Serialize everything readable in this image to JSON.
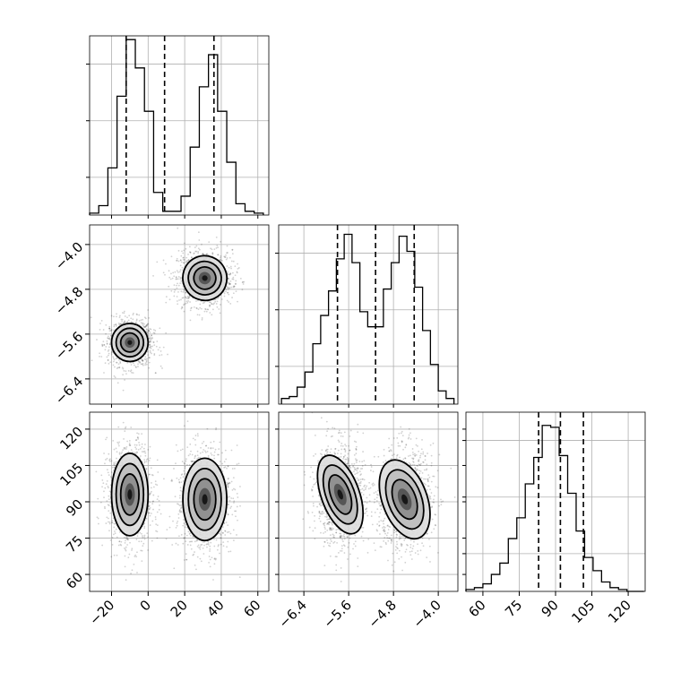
{
  "chart_data": {
    "type": "corner",
    "quantiles_note": "",
    "parameters": [
      {
        "label": "",
        "range": [
          -32,
          66
        ],
        "ticks": [
          -20,
          0,
          20,
          40,
          60
        ],
        "tick_labels": [
          "−20",
          "0",
          "20",
          "40",
          "60"
        ],
        "quantile_lines": [
          -12,
          9,
          36
        ],
        "hist_bins": [
          -32,
          -27,
          -22,
          -17,
          -12,
          -7,
          -2,
          3,
          8,
          13,
          18,
          23,
          28,
          33,
          38,
          43,
          48,
          53,
          58,
          63
        ],
        "hist_counts": [
          0.01,
          0.05,
          0.25,
          0.63,
          0.93,
          0.78,
          0.55,
          0.12,
          0.02,
          0.02,
          0.1,
          0.36,
          0.68,
          0.85,
          0.55,
          0.28,
          0.06,
          0.02,
          0.01
        ]
      },
      {
        "label": "",
        "range": [
          -6.85,
          -3.65
        ],
        "ticks": [
          -6.4,
          -5.6,
          -4.8,
          -4.0
        ],
        "tick_labels": [
          "−6.4",
          "−5.6",
          "−4.8",
          "−4.0"
        ],
        "quantile_lines": [
          -5.8,
          -5.12,
          -4.43
        ],
        "hist_bins": [
          -6.8,
          -6.66,
          -6.52,
          -6.38,
          -6.24,
          -6.1,
          -5.96,
          -5.82,
          -5.68,
          -5.54,
          -5.4,
          -5.26,
          -5.12,
          -4.98,
          -4.84,
          -4.7,
          -4.56,
          -4.42,
          -4.28,
          -4.14,
          -4.0,
          -3.86,
          -3.72
        ],
        "hist_counts": [
          0.03,
          0.04,
          0.09,
          0.17,
          0.32,
          0.47,
          0.6,
          0.77,
          0.9,
          0.75,
          0.49,
          0.41,
          0.41,
          0.61,
          0.75,
          0.89,
          0.81,
          0.62,
          0.39,
          0.21,
          0.07,
          0.03
        ]
      },
      {
        "label": "",
        "range": [
          53,
          127
        ],
        "ticks": [
          60,
          75,
          90,
          105,
          120
        ],
        "tick_labels": [
          "60",
          "75",
          "90",
          "105",
          "120"
        ],
        "quantile_lines": [
          83,
          92,
          101.5
        ],
        "hist_bins": [
          53,
          56.5,
          60,
          63.5,
          67,
          70.5,
          74,
          77.5,
          81,
          84.5,
          88,
          91.5,
          95,
          98.5,
          102,
          105.5,
          109,
          112.5,
          116,
          119.5,
          123,
          126.5
        ],
        "hist_counts": [
          0.01,
          0.02,
          0.04,
          0.09,
          0.15,
          0.28,
          0.39,
          0.57,
          0.71,
          0.88,
          0.87,
          0.72,
          0.52,
          0.32,
          0.18,
          0.11,
          0.05,
          0.02,
          0.01,
          0.0,
          0.0
        ]
      }
    ],
    "modes": [
      {
        "mean": [
          -10,
          -5.75,
          93
        ],
        "sd": [
          5,
          0.17,
          8.5
        ],
        "weight": 0.5
      },
      {
        "mean": [
          31,
          -4.6,
          91
        ],
        "sd": [
          6,
          0.2,
          8.5
        ],
        "weight": 0.5
      }
    ],
    "contour_levels": [
      0.25,
      0.5,
      0.75
    ]
  }
}
